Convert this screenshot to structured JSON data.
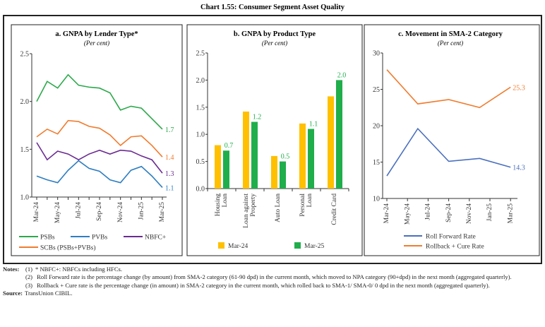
{
  "title": "Chart 1.55: Consumer Segment Asset Quality",
  "chart_data": [
    {
      "type": "line",
      "title": "a. GNPA by Lender Type*",
      "subtitle": "(Per cent)",
      "x": [
        "Mar-24",
        "Apr-24",
        "May-24",
        "Jun-24",
        "Jul-24",
        "Aug-24",
        "Sep-24",
        "Oct-24",
        "Nov-24",
        "Dec-24",
        "Jan-25",
        "Feb-25",
        "Mar-25"
      ],
      "xtick_labels": [
        "Mar-24",
        "May-24",
        "Jul-24",
        "Sep-24",
        "Nov-24",
        "Jan-25",
        "Mar-25"
      ],
      "ylim": [
        1.0,
        2.5
      ],
      "yticks": [
        "1.0",
        "1.5",
        "2.0",
        "2.5"
      ],
      "legend": "bottom",
      "series": [
        {
          "name": "PSBs",
          "color": "#2ca94b",
          "end_label": "1.7",
          "values": [
            2.0,
            2.21,
            2.14,
            2.28,
            2.17,
            2.15,
            2.14,
            2.09,
            1.91,
            1.95,
            1.93,
            1.82,
            1.71
          ]
        },
        {
          "name": "PVBs",
          "color": "#2f7ec1",
          "end_label": "1.1",
          "values": [
            1.22,
            1.18,
            1.15,
            1.28,
            1.38,
            1.3,
            1.27,
            1.18,
            1.15,
            1.28,
            1.32,
            1.22,
            1.1
          ]
        },
        {
          "name": "NBFC+",
          "color": "#6a2c91",
          "end_label": "1.3",
          "values": [
            1.57,
            1.39,
            1.48,
            1.45,
            1.39,
            1.45,
            1.49,
            1.45,
            1.49,
            1.48,
            1.43,
            1.39,
            1.25
          ]
        },
        {
          "name": "SCBs (PSBs+PVBs)",
          "color": "#f07c2f",
          "end_label": "1.4",
          "values": [
            1.63,
            1.71,
            1.66,
            1.8,
            1.79,
            1.74,
            1.72,
            1.65,
            1.54,
            1.63,
            1.64,
            1.54,
            1.42
          ]
        }
      ]
    },
    {
      "type": "bar",
      "title": "b. GNPA by Product Type",
      "subtitle": "(Per cent)",
      "categories": [
        [
          "Housing",
          "Loan"
        ],
        [
          "Loan against",
          "Property"
        ],
        [
          "Auto Loan"
        ],
        [
          "Personal",
          "Loan"
        ],
        [
          "Credit Card"
        ]
      ],
      "ylim": [
        0,
        2.5
      ],
      "yticks": [
        "0.0",
        "0.5",
        "1.0",
        "1.5",
        "2.0",
        "2.5"
      ],
      "legend": "bottom",
      "series": [
        {
          "name": "Mar-24",
          "color": "#ffc000",
          "values": [
            0.8,
            1.42,
            0.6,
            1.2,
            1.7
          ]
        },
        {
          "name": "Mar-25",
          "color": "#1fae4b",
          "values": [
            0.7,
            1.23,
            0.5,
            1.1,
            2.0
          ],
          "data_labels": [
            "0.7",
            "1.2",
            "0.5",
            "1.1",
            "2.0"
          ]
        }
      ]
    },
    {
      "type": "line",
      "title": "c. Movement in SMA-2 Category",
      "subtitle": "(Per cent)",
      "x": [
        "Mar-24",
        "Jun-24",
        "Sep-24",
        "Dec-24",
        "Mar-25"
      ],
      "xtick_labels": [
        "Mar-24",
        "May-24",
        "Jul-24",
        "Sep-24",
        "Nov-24",
        "Jan-25",
        "Mar-25"
      ],
      "ylim": [
        10,
        30
      ],
      "yticks": [
        "10",
        "15",
        "20",
        "25",
        "30"
      ],
      "legend": "bottom",
      "series": [
        {
          "name": "Roll Forward Rate",
          "color": "#4a6fbe",
          "end_label": "14.3",
          "values": [
            13.1,
            19.6,
            15.1,
            15.5,
            14.3
          ]
        },
        {
          "name": "Rollback + Cure Rate",
          "color": "#f07c2f",
          "end_label": "25.3",
          "values": [
            27.7,
            23.0,
            23.6,
            22.5,
            25.3
          ]
        }
      ]
    }
  ],
  "notes": {
    "label": "Notes:",
    "items": [
      {
        "num": "(1)",
        "text": "* NBFC+: NBFCs including HFCs."
      },
      {
        "num": "(2)",
        "text": "Roll Forward rate is the percentage change (by amount) from SMA-2 category (61-90 dpd) in the current month, which moved to NPA category (90+dpd) in the next month (aggregated quarterly)."
      },
      {
        "num": "(3)",
        "text": "Rollback + Cure rate is the percentage change (in amount) in SMA-2 category in the current month, which rolled back to SMA-1/ SMA-0/ 0 dpd in the next month (aggregated quarterly)."
      }
    ]
  },
  "source": {
    "label": "Source:",
    "text": "TransUnion CIBIL."
  }
}
